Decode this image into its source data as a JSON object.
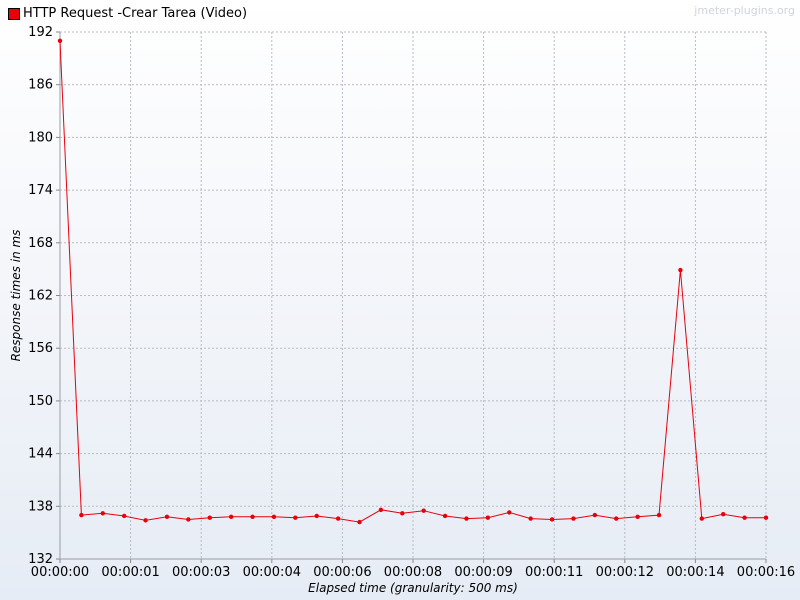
{
  "legend": {
    "label": "HTTP Request -Crear Tarea  (Video)",
    "color": "#e8000b"
  },
  "watermark": "jmeter-plugins.org",
  "chart_data": {
    "type": "line",
    "title": "",
    "xlabel": "Elapsed time (granularity: 500 ms)",
    "ylabel": "Response times in ms",
    "ylim": [
      132,
      192
    ],
    "yticks": [
      132,
      138,
      144,
      150,
      156,
      162,
      168,
      174,
      180,
      186,
      192
    ],
    "xlim": [
      0,
      16.5
    ],
    "xticks": [
      "00:00:00",
      "00:00:01",
      "00:00:03",
      "00:00:04",
      "00:00:06",
      "00:00:08",
      "00:00:09",
      "00:00:11",
      "00:00:12",
      "00:00:14",
      "00:00:16"
    ],
    "grid": true,
    "legend_position": "top-left",
    "series": [
      {
        "name": "HTTP Request -Crear Tarea  (Video)",
        "color": "#e8000b",
        "x": [
          0,
          0.5,
          1,
          1.5,
          2,
          2.5,
          3,
          3.5,
          4,
          4.5,
          5,
          5.5,
          6,
          6.5,
          7,
          7.5,
          8,
          8.5,
          9,
          9.5,
          10,
          10.5,
          11,
          11.5,
          12,
          12.5,
          13,
          13.5,
          14,
          14.5,
          15,
          15.5,
          16,
          16.5
        ],
        "values": [
          191,
          137.0,
          137.2,
          136.9,
          136.4,
          136.8,
          136.5,
          136.7,
          136.8,
          136.8,
          136.8,
          136.7,
          136.9,
          136.6,
          136.2,
          137.6,
          137.2,
          137.5,
          136.9,
          136.6,
          136.7,
          137.3,
          136.6,
          136.5,
          136.6,
          137.0,
          136.6,
          136.8,
          137.0,
          164.9,
          136.6,
          137.1,
          136.7,
          136.7
        ]
      }
    ]
  }
}
